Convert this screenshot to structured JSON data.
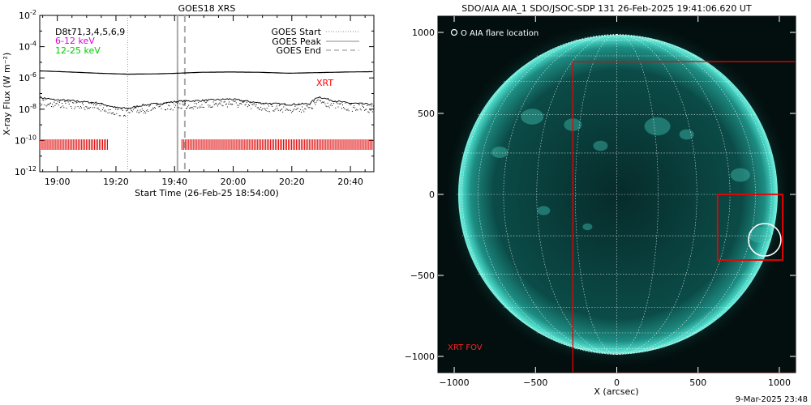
{
  "left_panel": {
    "title": "GOES18 XRS",
    "legend_channels": [
      {
        "label": "D8t71,3,4,5,6,9",
        "color": "#000000"
      },
      {
        "label": "6-12 keV",
        "color": "#dd00dd"
      },
      {
        "label": "12-25 keV",
        "color": "#00cc00"
      }
    ],
    "legend_markers": [
      {
        "label": "GOES Start",
        "style": "dotted"
      },
      {
        "label": "GOES Peak",
        "style": "solid"
      },
      {
        "label": "GOES End",
        "style": "dashed"
      }
    ],
    "xrt_label": "XRT",
    "ylabel": "X-ray Flux (W m⁻²)",
    "xlabel": "Start Time (26-Feb-25 18:54:00)"
  },
  "right_panel": {
    "title": "SDO/AIA AIA_1 SDO/JSOC-SDP 131 26-Feb-2025 19:41:06.620 UT",
    "flare_legend": "O AIA flare location",
    "xrt_fov_label": "XRT FOV",
    "xlabel": "X (arcsec)",
    "timestamp": "9-Mar-2025 23:48"
  },
  "chart_data": [
    {
      "type": "line",
      "title": "GOES18 XRS",
      "xlabel": "Start Time (26-Feb-25 18:54:00)",
      "ylabel": "X-ray Flux (W m⁻²)",
      "y_scale": "log",
      "ylim_exponent": [
        -12,
        -2
      ],
      "y_tick_exponents": [
        -12,
        -10,
        -8,
        -6,
        -4,
        -2
      ],
      "xlim_minutes_after_start": [
        0,
        114
      ],
      "x_ticks": [
        {
          "label": "19:00",
          "minutes": 6
        },
        {
          "label": "19:20",
          "minutes": 26
        },
        {
          "label": "19:40",
          "minutes": 46
        },
        {
          "label": "20:00",
          "minutes": 66
        },
        {
          "label": "20:20",
          "minutes": 86
        },
        {
          "label": "20:40",
          "minutes": 106
        }
      ],
      "markers": {
        "goes_start_minutes": 30,
        "goes_peak_minutes": 47,
        "goes_end_minutes": 49.5
      },
      "series": [
        {
          "name": "long channel",
          "color": "#000000",
          "x": [
            0,
            10,
            20,
            30,
            40,
            47,
            55,
            65,
            75,
            85,
            95,
            105,
            114
          ],
          "log10_flux": [
            -5.55,
            -5.62,
            -5.7,
            -5.76,
            -5.74,
            -5.7,
            -5.64,
            -5.62,
            -5.64,
            -5.7,
            -5.66,
            -5.62,
            -5.6
          ]
        },
        {
          "name": "short channel",
          "color": "#000000",
          "x": [
            0,
            5,
            10,
            20,
            26,
            30,
            35,
            40,
            47,
            55,
            65,
            75,
            85,
            92,
            95,
            100,
            105,
            114
          ],
          "log10_flux": [
            -7.25,
            -7.4,
            -7.45,
            -7.6,
            -7.9,
            -7.95,
            -7.75,
            -7.65,
            -7.5,
            -7.45,
            -7.35,
            -7.6,
            -7.7,
            -7.65,
            -7.2,
            -7.45,
            -7.6,
            -7.7
          ]
        }
      ],
      "xrt_observation_intervals_minutes": [
        [
          0,
          23.5
        ],
        [
          48.5,
          114
        ]
      ]
    },
    {
      "type": "image",
      "title": "SDO/AIA AIA_1 SDO/JSOC-SDP 131 26-Feb-2025 19:41:06.620 UT",
      "xlabel": "X (arcsec)",
      "xlim": [
        -1100,
        1100
      ],
      "ylim": [
        -1100,
        1100
      ],
      "x_ticks": [
        -1000,
        -500,
        0,
        500,
        1000
      ],
      "y_ticks": [
        -1000,
        -500,
        0,
        500,
        1000
      ],
      "solar_radius_arcsec": 985,
      "xrt_fov_box": {
        "x": [
          -270,
          1100
        ],
        "y": [
          -1100,
          820
        ]
      },
      "flare_zoom_box": {
        "x": [
          620,
          1020
        ],
        "y": [
          -405,
          0
        ]
      },
      "aia_flare_location": {
        "x": 910,
        "y": -280
      }
    }
  ]
}
